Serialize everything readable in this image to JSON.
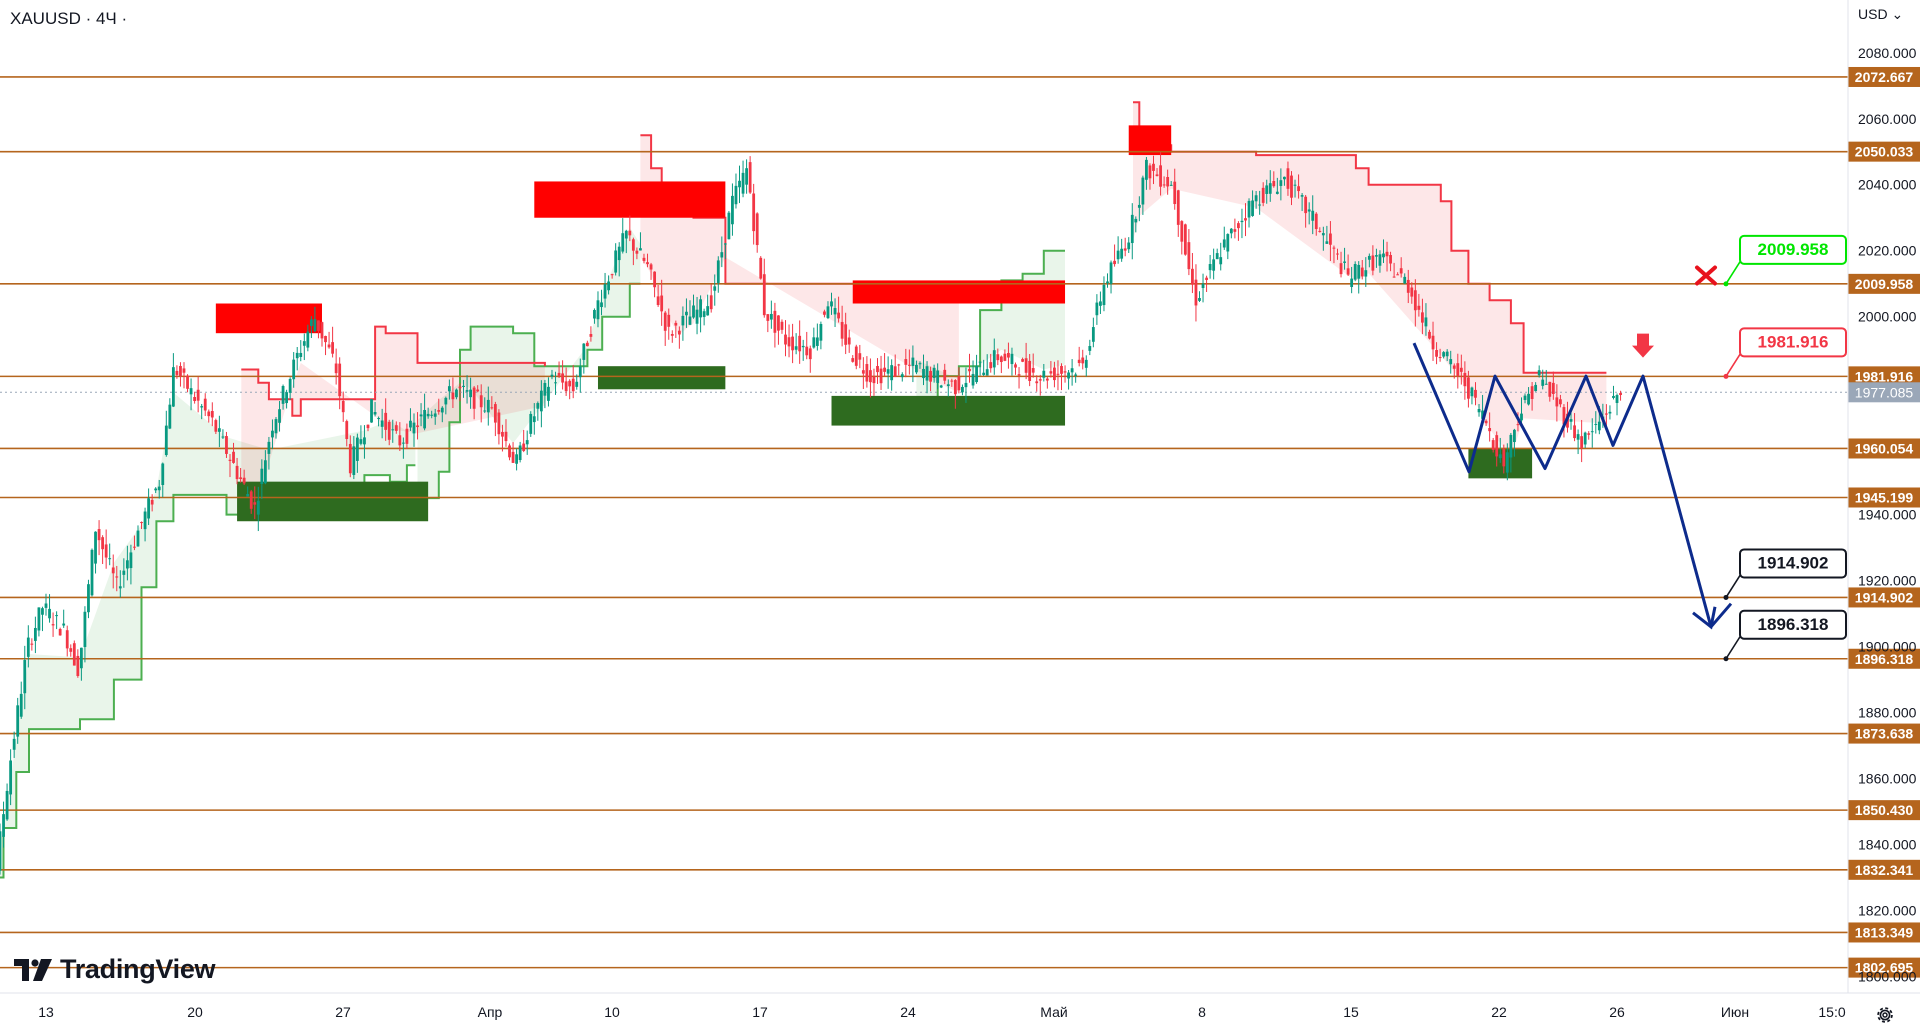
{
  "symbol": "XAUUSD · 4Ч ·",
  "currency": "USD ⌄",
  "brand": "TradingView",
  "colors": {
    "level": "#b5651d",
    "bull": "#089981",
    "bear": "#f23645",
    "supplyBox": "#ff0000",
    "demandBox": "#2e6b1f",
    "path": "#0d2b8c",
    "trailUp": "#4caf50",
    "trailDown": "#f23645",
    "lastPrice": "#9aa7b8"
  },
  "chart_data": {
    "type": "candlestick",
    "ylim": [
      1795,
      2096
    ],
    "y_ticks": [
      "2080.000",
      "2060.000",
      "2040.000",
      "2020.000",
      "2000.000",
      "1940.000",
      "1920.000",
      "1900.000",
      "1880.000",
      "1860.000",
      "1840.000",
      "1820.000",
      "1800.000"
    ],
    "x_ticks": [
      "13",
      "20",
      "27",
      "Апр",
      "10",
      "17",
      "24",
      "Май",
      "8",
      "15",
      "22",
      "26",
      "Июн",
      "15:0"
    ],
    "levels": [
      {
        "value": 2072.667,
        "label": "2072.667"
      },
      {
        "value": 2050.033,
        "label": "2050.033"
      },
      {
        "value": 2009.958,
        "label": "2009.958"
      },
      {
        "value": 1981.916,
        "label": "1981.916"
      },
      {
        "value": 1960.054,
        "label": "1960.054"
      },
      {
        "value": 1945.199,
        "label": "1945.199"
      },
      {
        "value": 1914.902,
        "label": "1914.902"
      },
      {
        "value": 1896.318,
        "label": "1896.318"
      },
      {
        "value": 1873.638,
        "label": "1873.638"
      },
      {
        "value": 1850.43,
        "label": "1850.430"
      },
      {
        "value": 1832.341,
        "label": "1832.341"
      },
      {
        "value": 1813.349,
        "label": "1813.349"
      },
      {
        "value": 1802.695,
        "label": "1802.695"
      }
    ],
    "last_price": {
      "value": 1977.085,
      "label": "1977.085"
    },
    "annotations": [
      {
        "label": "2009.958",
        "value": 2009.958,
        "color": "#00e600"
      },
      {
        "label": "1981.916",
        "value": 1981.916,
        "color": "#f23645"
      },
      {
        "label": "1914.902",
        "value": 1914.902,
        "color": "#131722"
      },
      {
        "label": "1896.318",
        "value": 1896.318,
        "color": "#131722"
      }
    ],
    "supply_zones": [
      {
        "from": "Mar 21",
        "to": "Mar 26",
        "top": 2004,
        "bottom": 1995
      },
      {
        "from": "Apr 5",
        "to": "Apr 14",
        "top": 2041,
        "bottom": 2030
      },
      {
        "from": "Apr 20",
        "to": "Apr 30",
        "top": 2011,
        "bottom": 2004
      },
      {
        "from": "May 3",
        "to": "May 5",
        "top": 2058,
        "bottom": 2049
      }
    ],
    "demand_zones": [
      {
        "from": "Mar 22",
        "to": "Mar 31",
        "top": 1950,
        "bottom": 1938
      },
      {
        "from": "Apr 8",
        "to": "Apr 14",
        "top": 1985,
        "bottom": 1978
      },
      {
        "from": "Apr 19",
        "to": "Apr 30",
        "top": 1976,
        "bottom": 1967
      },
      {
        "from": "May 19",
        "to": "May 22",
        "top": 1960,
        "bottom": 1951
      }
    ],
    "projection": [
      1992,
      1953,
      1982,
      1954,
      1982,
      1961,
      1982,
      1906,
      1913
    ],
    "ohlc": []
  }
}
